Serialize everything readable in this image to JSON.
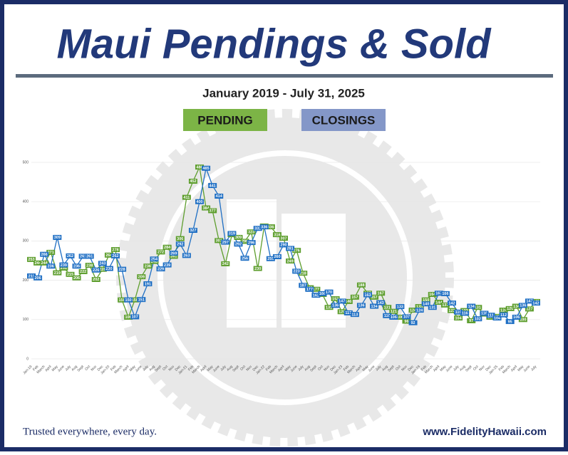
{
  "chart_data": {
    "type": "line",
    "title": "Maui Pendings & Sold",
    "subtitle": "January 2019 - July 31, 2025",
    "footer_left": "Trusted everywhere, every day.",
    "footer_right": "www.FidelityHawaii.com",
    "categories": [
      "Jan-19",
      "Feb",
      "March",
      "April",
      "May",
      "June",
      "July",
      "Aug",
      "Sept",
      "Oct",
      "Nov",
      "Dec",
      "Jan-20",
      "Feb",
      "March",
      "April",
      "May",
      "June",
      "July",
      "Aug",
      "Sept",
      "Oct",
      "Nov",
      "Dec",
      "Jan-21",
      "Feb",
      "March",
      "April",
      "May",
      "June",
      "July",
      "Aug",
      "Sept",
      "Oct",
      "Nov",
      "Dec",
      "Jan-22",
      "Feb",
      "March",
      "April",
      "May",
      "June",
      "July",
      "Aug",
      "Sept",
      "Oct",
      "Nov",
      "Dec",
      "Jan-23",
      "Feb",
      "March",
      "April",
      "May",
      "June",
      "July",
      "Aug",
      "Sept",
      "Oct",
      "Nov",
      "Dec",
      "Jan-24",
      "Feb",
      "March",
      "April",
      "May",
      "June",
      "July",
      "Aug",
      "Sept",
      "Oct",
      "Nov",
      "Dec",
      "Jan-25",
      "Feb",
      "March",
      "April",
      "May",
      "June",
      "July"
    ],
    "series": [
      {
        "name": "PENDING",
        "color": "#5e9e2e",
        "legend_color": "#7cb446",
        "values": [
          253,
          244,
          244,
          271,
          219,
          231,
          215,
          206,
          222,
          238,
          202,
          228,
          264,
          278,
          150,
          106,
          150,
          209,
          236,
          248,
          272,
          284,
          261,
          306,
          411,
          452,
          488,
          384,
          377,
          301,
          242,
          316,
          309,
          299,
          323,
          230,
          338,
          336,
          316,
          307,
          249,
          276,
          218,
          181,
          177,
          164,
          131,
          153,
          120,
          146,
          157,
          188,
          167,
          157,
          167,
          131,
          121,
          106,
          96,
          124,
          133,
          150,
          164,
          144,
          137,
          123,
          104,
          123,
          97,
          131,
          114,
          106,
          108,
          124,
          128,
          134,
          100,
          127,
          146
        ]
      },
      {
        "name": "CLOSINGS",
        "color": "#1f6fc4",
        "legend_color": "#8497c8",
        "values": [
          211,
          206,
          266,
          236,
          309,
          239,
          262,
          236,
          261,
          261,
          226,
          243,
          230,
          262,
          228,
          150,
          107,
          151,
          191,
          254,
          229,
          239,
          269,
          292,
          263,
          327,
          400,
          485,
          441,
          414,
          297,
          319,
          292,
          256,
          296,
          332,
          336,
          255,
          260,
          290,
          281,
          223,
          187,
          177,
          162,
          166,
          170,
          136,
          147,
          117,
          113,
          136,
          163,
          134,
          143,
          110,
          106,
          133,
          107,
          92,
          124,
          140,
          131,
          167,
          166,
          142,
          119,
          116,
          134,
          102,
          116,
          111,
          104,
          112,
          95,
          106,
          136,
          147,
          142
        ]
      }
    ],
    "ylim": [
      0,
      500
    ],
    "yticks": [
      0,
      100,
      200,
      300,
      400,
      500
    ],
    "grid": true
  }
}
